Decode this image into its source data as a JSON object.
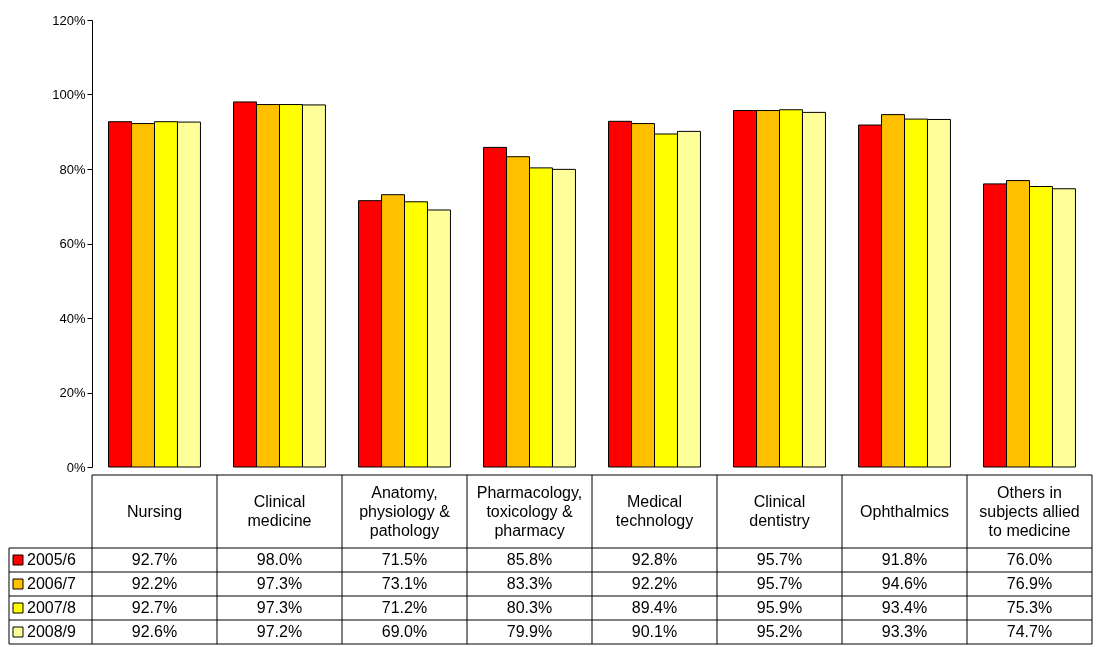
{
  "chart_data": {
    "type": "bar",
    "categories": [
      "Nursing",
      "Clinical medicine",
      "Anatomy, physiology & pathology",
      "Pharmacology, toxicology & pharmacy",
      "Medical technology",
      "Clinical dentistry",
      "Ophthalmics",
      "Others in subjects allied to medicine"
    ],
    "series": [
      {
        "name": "2005/6",
        "color": "#ff0000",
        "values": [
          92.7,
          98.0,
          71.5,
          85.8,
          92.8,
          95.7,
          91.8,
          76.0
        ],
        "value_labels": [
          "92.7%",
          "98.0%",
          "71.5%",
          "85.8%",
          "92.8%",
          "95.7%",
          "91.8%",
          "76.0%"
        ]
      },
      {
        "name": "2006/7",
        "color": "#ffc000",
        "values": [
          92.2,
          97.3,
          73.1,
          83.3,
          92.2,
          95.7,
          94.6,
          76.9
        ],
        "value_labels": [
          "92.2%",
          "97.3%",
          "73.1%",
          "83.3%",
          "92.2%",
          "95.7%",
          "94.6%",
          "76.9%"
        ]
      },
      {
        "name": "2007/8",
        "color": "#ffff00",
        "values": [
          92.7,
          97.3,
          71.2,
          80.3,
          89.4,
          95.9,
          93.4,
          75.3
        ],
        "value_labels": [
          "92.7%",
          "97.3%",
          "71.2%",
          "80.3%",
          "89.4%",
          "95.9%",
          "93.4%",
          "75.3%"
        ]
      },
      {
        "name": "2008/9",
        "color": "#ffff99",
        "values": [
          92.6,
          97.2,
          69.0,
          79.9,
          90.1,
          95.2,
          93.3,
          74.7
        ],
        "value_labels": [
          "92.6%",
          "97.2%",
          "69.0%",
          "79.9%",
          "90.1%",
          "95.2%",
          "93.3%",
          "74.7%"
        ]
      }
    ],
    "legend": "bottom left",
    "ylim": [
      0,
      120
    ],
    "yticks": [
      {
        "value": 0,
        "label": "0%"
      },
      {
        "value": 20,
        "label": "20%"
      },
      {
        "value": 40,
        "label": "40%"
      },
      {
        "value": 60,
        "label": "60%"
      },
      {
        "value": 80,
        "label": "80%"
      },
      {
        "value": 100,
        "label": "100%"
      },
      {
        "value": 120,
        "label": "120%"
      }
    ]
  }
}
